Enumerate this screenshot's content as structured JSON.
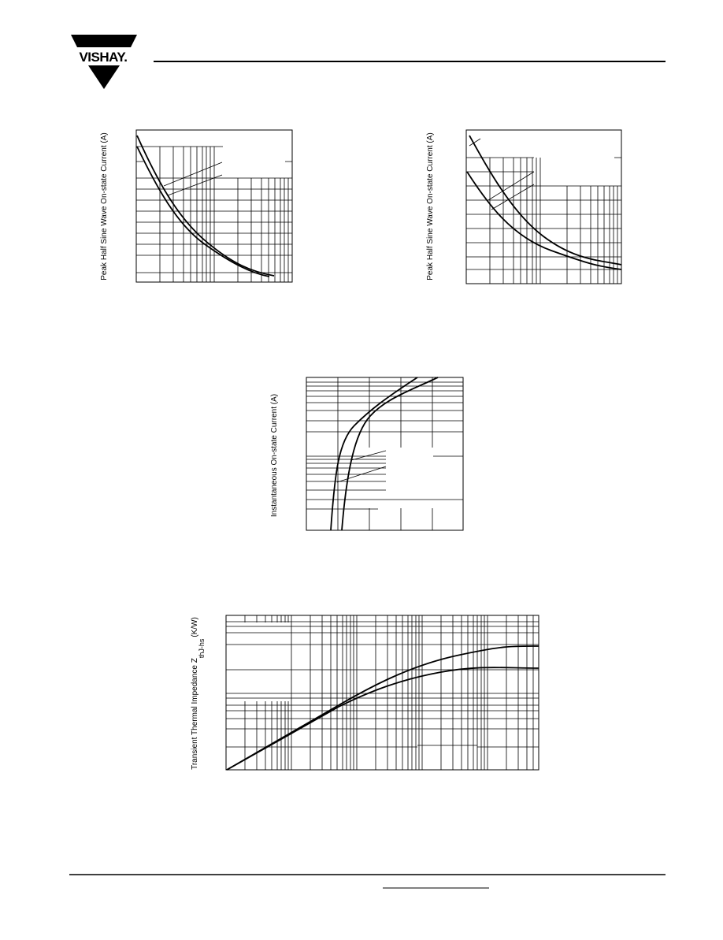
{
  "header": {
    "logo": "VISHAY."
  },
  "figures": [
    {
      "y_label": "Peak Half Sine Wave On-state Current (A)"
    },
    {
      "y_label": "Peak Half Sine Wave On-state Current (A)"
    },
    {
      "y_label": "Instantaneous On-state Current (A)"
    },
    {
      "y_label_main": "Transient Thermal Impedance Z",
      "y_label_sub": "thJ-hs",
      "y_label_unit": "(K/W)"
    }
  ]
}
